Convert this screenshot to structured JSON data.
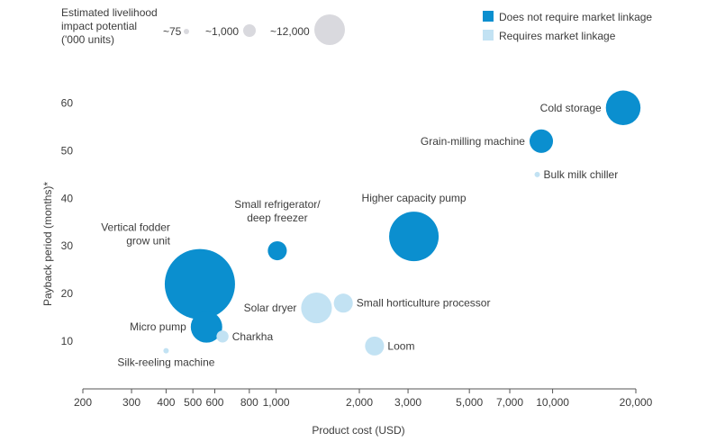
{
  "colors": {
    "dark": "#0b8fcf",
    "light": "#c2e2f3",
    "size_legend": "#d9d9de",
    "axis": "#555555"
  },
  "size_legend": {
    "title_lines": [
      "Estimated livelihood",
      "impact potential",
      "('000 units)"
    ],
    "items": [
      {
        "label": "~75",
        "value": 75
      },
      {
        "label": "~1,000",
        "value": 1000
      },
      {
        "label": "~12,000",
        "value": 12000
      }
    ]
  },
  "color_legend": [
    {
      "label": "Does not require market linkage",
      "color_key": "dark"
    },
    {
      "label": "Requires market linkage",
      "color_key": "light"
    }
  ],
  "chart_data": {
    "type": "scatter",
    "xlabel": "Product cost (USD)",
    "ylabel": "Payback period (months)*",
    "x_scale": "log",
    "xlim": [
      200,
      20000
    ],
    "ylim": [
      0,
      65
    ],
    "x_ticks": [
      200,
      300,
      400,
      500,
      600,
      800,
      1000,
      2000,
      3000,
      5000,
      7000,
      10000,
      20000
    ],
    "x_tick_labels": [
      "200",
      "300",
      "400",
      "500",
      "600",
      "800",
      "1,000",
      "2,000",
      "3,000",
      "5,000",
      "7,000",
      "10,000",
      "20,000"
    ],
    "y_ticks": [
      10,
      20,
      30,
      40,
      50,
      60
    ],
    "y_tick_labels": [
      "10",
      "20",
      "30",
      "40",
      "50",
      "60"
    ],
    "points": [
      {
        "name": "Cold storage",
        "x": 18000,
        "y": 59,
        "impact": 2500,
        "group": "dark"
      },
      {
        "name": "Grain-milling machine",
        "x": 9100,
        "y": 52,
        "impact": 1000,
        "group": "dark"
      },
      {
        "name": "Bulk milk chiller",
        "x": 8800,
        "y": 45,
        "impact": 75,
        "group": "light"
      },
      {
        "name": "Higher capacity pump",
        "x": 3150,
        "y": 32,
        "impact": 5600,
        "group": "dark"
      },
      {
        "name": "Small refrigerator/ deep freezer",
        "x": 1010,
        "y": 29,
        "impact": 600,
        "group": "dark"
      },
      {
        "name": "Vertical fodder grow unit",
        "x": 530,
        "y": 22,
        "impact": 12000,
        "group": "dark"
      },
      {
        "name": "Solar dryer",
        "x": 1400,
        "y": 17,
        "impact": 1900,
        "group": "light"
      },
      {
        "name": "Small horticulture processor",
        "x": 1750,
        "y": 18,
        "impact": 600,
        "group": "light"
      },
      {
        "name": "Micro pump",
        "x": 560,
        "y": 13,
        "impact": 2000,
        "group": "dark"
      },
      {
        "name": "Charkha",
        "x": 640,
        "y": 11,
        "impact": 200,
        "group": "light"
      },
      {
        "name": "Silk-reeling machine",
        "x": 400,
        "y": 8,
        "impact": 75,
        "group": "light"
      },
      {
        "name": "Loom",
        "x": 2270,
        "y": 9,
        "impact": 600,
        "group": "light"
      }
    ]
  }
}
